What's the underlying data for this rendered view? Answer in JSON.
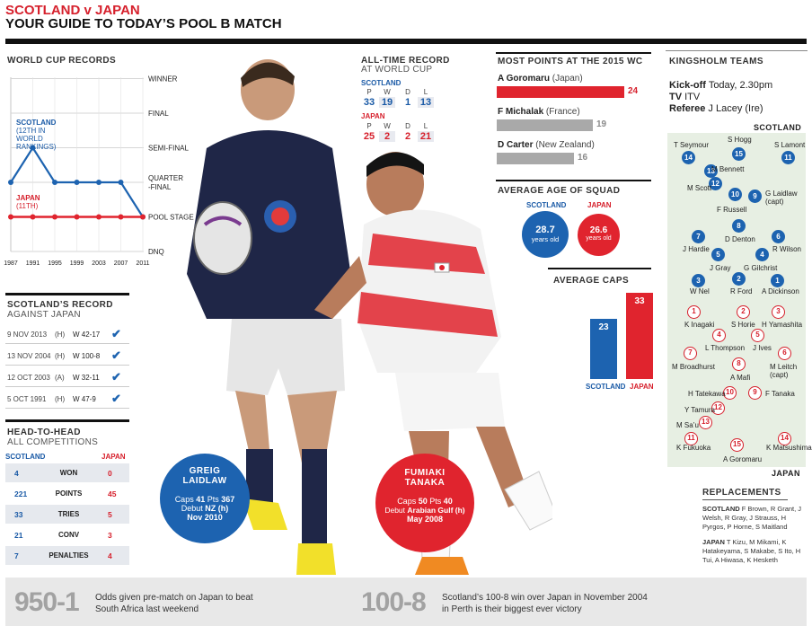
{
  "header": {
    "title": "SCOTLAND v JAPAN",
    "subtitle": "YOUR GUIDE TO TODAY’S POOL B MATCH"
  },
  "world_cup_records": {
    "title": "WORLD CUP RECORDS",
    "stages": [
      "WINNER",
      "FINAL",
      "SEMI-FINAL",
      "QUARTER\n-FINAL",
      "POOL STAGE",
      "DNQ"
    ],
    "years": [
      "1987",
      "1991",
      "1995",
      "1999",
      "2003",
      "2007",
      "2011"
    ],
    "scotland_label": "SCOTLAND",
    "scotland_note": "(12TH IN WORLD RANKINGS)",
    "japan_label": "JAPAN",
    "japan_note": "(11TH)",
    "scotland_color": "#1d63b0",
    "japan_color": "#e0242e"
  },
  "chart_data": {
    "type": "line",
    "x": [
      "1987",
      "1991",
      "1995",
      "1999",
      "2003",
      "2007",
      "2011"
    ],
    "y_categories": [
      "DNQ",
      "POOL STAGE",
      "QUARTER-FINAL",
      "SEMI-FINAL",
      "FINAL",
      "WINNER"
    ],
    "series": [
      {
        "name": "SCOTLAND",
        "values": [
          "QUARTER-FINAL",
          "SEMI-FINAL",
          "QUARTER-FINAL",
          "QUARTER-FINAL",
          "QUARTER-FINAL",
          "QUARTER-FINAL",
          "POOL STAGE"
        ]
      },
      {
        "name": "JAPAN",
        "values": [
          "POOL STAGE",
          "POOL STAGE",
          "POOL STAGE",
          "POOL STAGE",
          "POOL STAGE",
          "POOL STAGE",
          "POOL STAGE"
        ]
      }
    ]
  },
  "all_time": {
    "title": "ALL-TIME RECORD",
    "subtitle": "AT WORLD CUP",
    "headers": [
      "P",
      "W",
      "D",
      "L"
    ],
    "scotland": {
      "label": "SCOTLAND",
      "values": [
        "33",
        "19",
        "1",
        "13"
      ]
    },
    "japan": {
      "label": "JAPAN",
      "values": [
        "25",
        "2",
        "2",
        "21"
      ]
    }
  },
  "most_points": {
    "title": "MOST POINTS AT THE 2015 WC",
    "players": [
      {
        "name": "A Goromaru",
        "country": "(Japan)",
        "points": 24,
        "color": "red"
      },
      {
        "name": "F Michalak",
        "country": "(France)",
        "points": 19,
        "color": "grey"
      },
      {
        "name": "D Carter",
        "country": "(New Zealand)",
        "points": 16,
        "color": "grey"
      }
    ]
  },
  "average_age": {
    "title": "AVERAGE AGE OF SQUAD",
    "scotland_label": "SCOTLAND",
    "japan_label": "JAPAN",
    "scotland_value": "28.7",
    "japan_value": "26.6",
    "unit": "years old"
  },
  "average_caps": {
    "title": "AVERAGE CAPS",
    "scotland_label": "SCOTLAND",
    "japan_label": "JAPAN",
    "scotland_value": "23",
    "japan_value": "33",
    "scotland_caps": 23,
    "japan_caps": 33
  },
  "scotland_record": {
    "title": "SCOTLAND’S RECORD",
    "subtitle": "AGAINST JAPAN",
    "rows": [
      {
        "date": "9 NOV 2013",
        "venue": "(H)",
        "result": "W 42-17"
      },
      {
        "date": "13 NOV 2004",
        "venue": "(H)",
        "result": "W 100-8"
      },
      {
        "date": "12 OCT 2003",
        "venue": "(A)",
        "result": "W 32-11"
      },
      {
        "date": "5 OCT 1991",
        "venue": "(H)",
        "result": "W 47-9"
      }
    ],
    "check": "✔"
  },
  "head_to_head": {
    "title": "HEAD-TO-HEAD",
    "subtitle": "ALL COMPETITIONS",
    "scotland_label": "SCOTLAND",
    "japan_label": "JAPAN",
    "rows": [
      {
        "stat": "WON",
        "scotland": "4",
        "japan": "0"
      },
      {
        "stat": "POINTS",
        "scotland": "221",
        "japan": "45"
      },
      {
        "stat": "TRIES",
        "scotland": "33",
        "japan": "5"
      },
      {
        "stat": "CONV",
        "scotland": "21",
        "japan": "3"
      },
      {
        "stat": "PENALTIES",
        "scotland": "7",
        "japan": "4"
      }
    ]
  },
  "players": {
    "laidlaw": {
      "name1": "GREIG",
      "name2": "LAIDLAW",
      "caps_label": "Caps",
      "caps": "41",
      "pts_label": "Pts",
      "pts": "367",
      "debut_label": "Debut",
      "debut_team": "NZ (h)",
      "debut_date": "Nov 2010"
    },
    "tanaka": {
      "name1": "FUMIAKI",
      "name2": "TANAKA",
      "caps_label": "Caps",
      "caps": "50",
      "pts_label": "Pts",
      "pts": "40",
      "debut_label": "Debut",
      "debut_team": "Arabian Gulf (h)",
      "debut_date": "May 2008"
    }
  },
  "kingsholm": {
    "title": "KINGSHOLM TEAMS",
    "kickoff_label": "Kick-off",
    "kickoff_value": "Today, 2.30pm",
    "tv_label": "TV",
    "tv_value": "ITV",
    "referee_label": "Referee",
    "referee_value": "J Lacey (Ire)",
    "scotland_label": "SCOTLAND",
    "japan_label": "JAPAN",
    "scotland_team": [
      {
        "num": "14",
        "name": "T Seymour"
      },
      {
        "num": "15",
        "name": "S Hogg"
      },
      {
        "num": "11",
        "name": "S Lamont"
      },
      {
        "num": "13",
        "name": "M Bennett"
      },
      {
        "num": "12",
        "name": "M Scott"
      },
      {
        "num": "10",
        "name": "F Russell"
      },
      {
        "num": "9",
        "name": "G Laidlaw (capt)"
      },
      {
        "num": "7",
        "name": "J Hardie"
      },
      {
        "num": "8",
        "name": "D Denton"
      },
      {
        "num": "6",
        "name": "R Wilson"
      },
      {
        "num": "5",
        "name": "J Gray"
      },
      {
        "num": "4",
        "name": "G Gilchrist"
      },
      {
        "num": "3",
        "name": "W Nel"
      },
      {
        "num": "2",
        "name": "R Ford"
      },
      {
        "num": "1",
        "name": "A Dickinson"
      }
    ],
    "japan_team": [
      {
        "num": "1",
        "name": "K Inagaki"
      },
      {
        "num": "2",
        "name": "S Horie"
      },
      {
        "num": "3",
        "name": "H Yamashita"
      },
      {
        "num": "4",
        "name": "L Thompson"
      },
      {
        "num": "5",
        "name": "J Ives"
      },
      {
        "num": "7",
        "name": "M Broadhurst"
      },
      {
        "num": "8",
        "name": "A Mafi"
      },
      {
        "num": "6",
        "name": "M Leitch (capt)"
      },
      {
        "num": "10",
        "name": "H Tatekawa"
      },
      {
        "num": "9",
        "name": "F Tanaka"
      },
      {
        "num": "12",
        "name": "Y Tamura"
      },
      {
        "num": "13",
        "name": "M Sa’u"
      },
      {
        "num": "11",
        "name": "K Fukuoka"
      },
      {
        "num": "15",
        "name": "A Goromaru"
      },
      {
        "num": "14",
        "name": "K Matsushima"
      }
    ]
  },
  "replacements": {
    "title": "REPLACEMENTS",
    "scotland_label": "SCOTLAND",
    "scotland_list": "F Brown, R Grant, J Welsh, R Gray, J Strauss, H Pyrgos, P Horne, S Maitland",
    "japan_label": "JAPAN",
    "japan_list": "T Kizu, M Mikami, K Hatakeyama, S Makabe, S Ito, H Tui, A Hiwasa, K Hesketh"
  },
  "footer": {
    "odds_num": "950-1",
    "odds_text": "Odds given pre-match on Japan to beat South Africa last weekend",
    "score_num": "100-8",
    "score_text": "Scotland’s 100-8 win over Japan in November 2004 in Perth is their biggest ever victory"
  }
}
